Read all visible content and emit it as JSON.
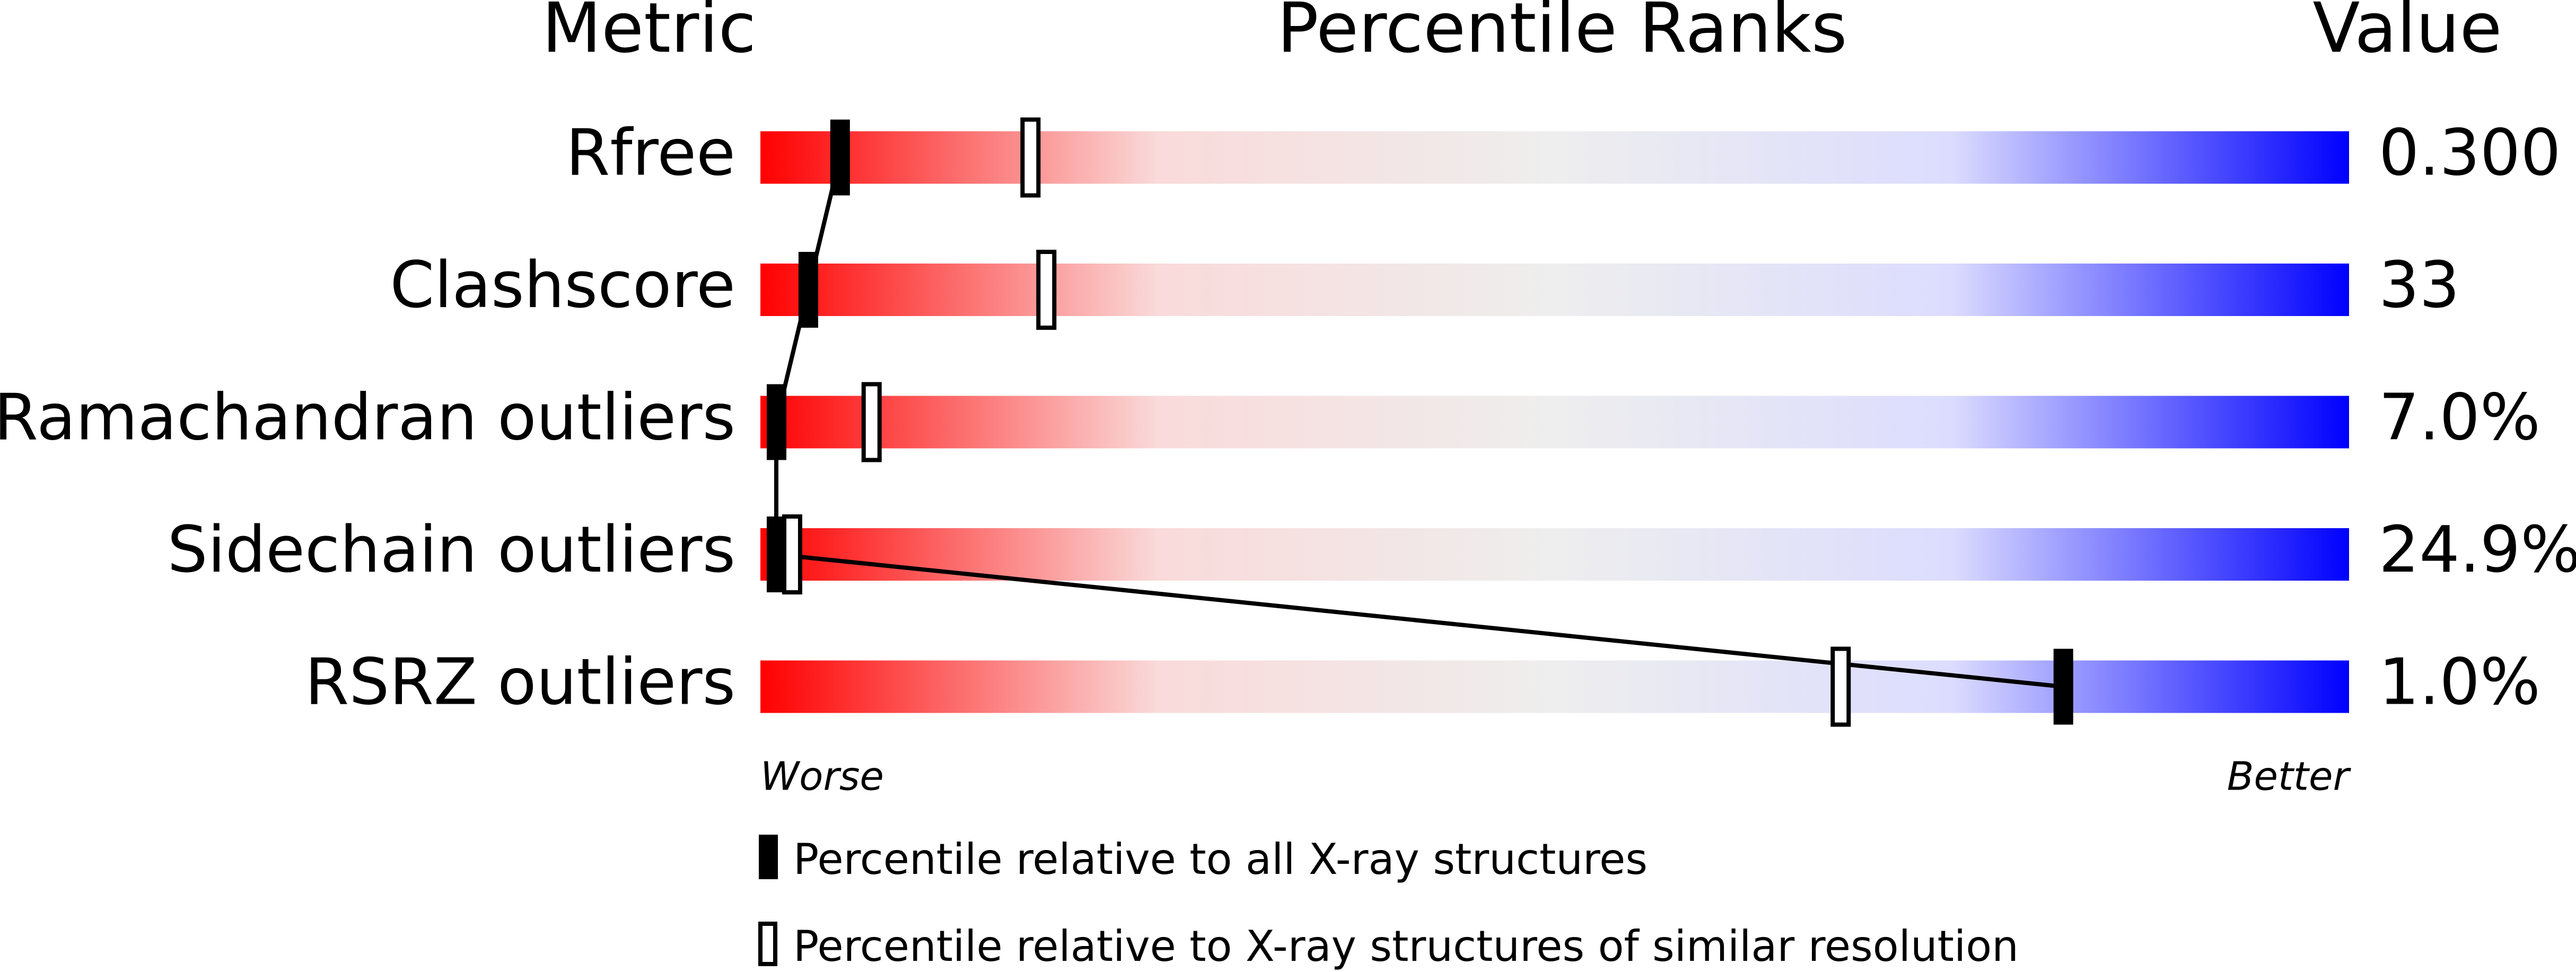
{
  "chart_data": {
    "type": "percentile",
    "headers": [
      "Metric",
      "Percentile Ranks",
      "Value"
    ],
    "categories": [
      "Rfree",
      "Clashscore",
      "Ramachandran outliers",
      "Sidechain outliers",
      "RSRZ outliers"
    ],
    "values": [
      0.3,
      33,
      7.0,
      24.9,
      1.0
    ],
    "value_labels": [
      "0.300",
      "33",
      "7.0%",
      "24.9%",
      "1.0%"
    ],
    "xlim": [
      0,
      100
    ],
    "x_start_label": "Worse",
    "x_end_label": "Better",
    "gradient": [
      "#ff0000",
      "#fadada",
      "#eeeeee",
      "#dcdcff",
      "#0000ff"
    ],
    "series": [
      {
        "name": "Percentile relative to all X-ray structures",
        "color": "#000000",
        "values": [
          5,
          3,
          1,
          1,
          82
        ]
      },
      {
        "name": "Percentile relative to X-ray structures of similar resolution",
        "color": "#000000",
        "values": [
          17,
          18,
          7,
          2,
          68
        ]
      }
    ]
  }
}
